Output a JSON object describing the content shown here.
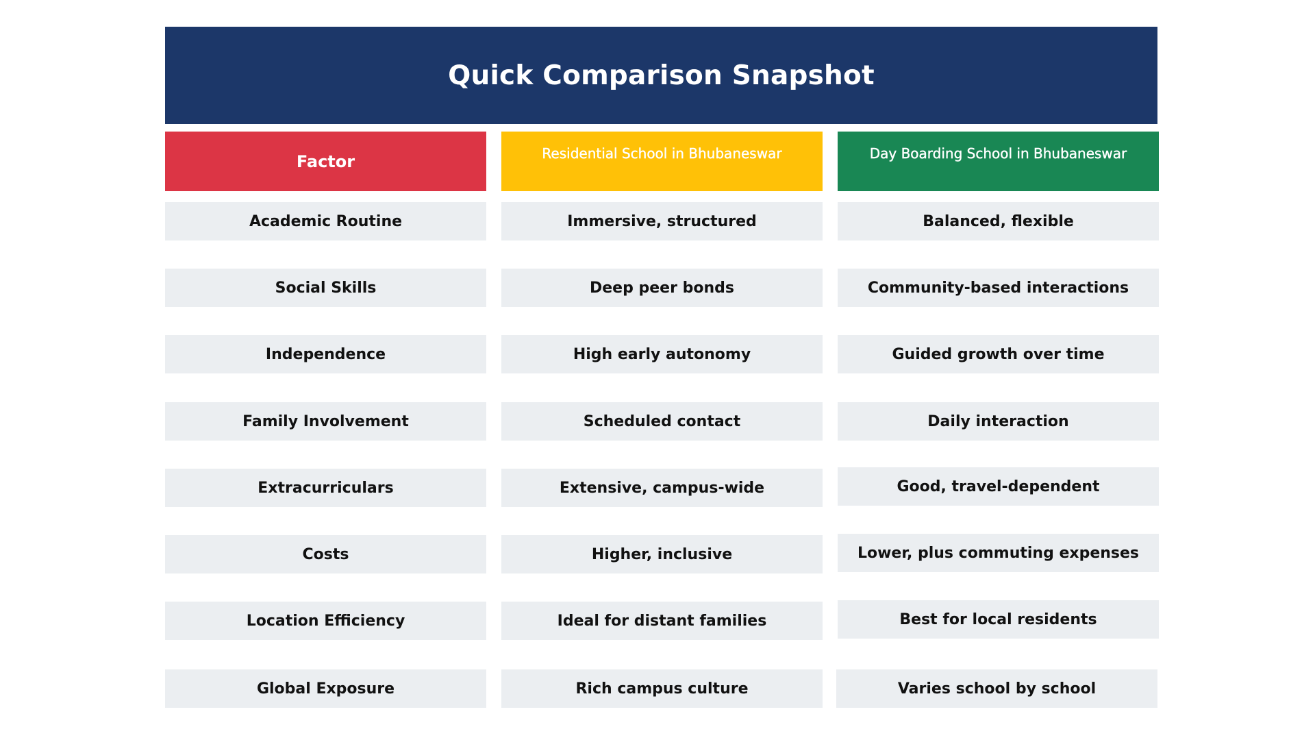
{
  "title": "Quick Comparison Snapshot",
  "headers": {
    "factor": "Factor",
    "residential": "Residential School in Bhubaneswar",
    "day_boarding": "Day Boarding School in Bhubaneswar"
  },
  "colors": {
    "title_bg": "#1c3769",
    "factor_bg": "#dc3545",
    "residential_bg": "#ffc107",
    "day_boarding_bg": "#198754",
    "cell_bg": "#ebeef1"
  },
  "rows": [
    {
      "factor": "Academic Routine",
      "residential": "Immersive, structured",
      "day_boarding": "Balanced, flexible"
    },
    {
      "factor": "Social Skills",
      "residential": "Deep peer bonds",
      "day_boarding": "Community-based interactions"
    },
    {
      "factor": "Independence",
      "residential": "High early autonomy",
      "day_boarding": "Guided growth over time"
    },
    {
      "factor": "Family Involvement",
      "residential": "Scheduled contact",
      "day_boarding": "Daily interaction"
    },
    {
      "factor": "Extracurriculars",
      "residential": "Extensive, campus-wide",
      "day_boarding": "Good, travel-dependent"
    },
    {
      "factor": "Costs",
      "residential": "Higher, inclusive",
      "day_boarding": "Lower, plus commuting expenses"
    },
    {
      "factor": "Location Efficiency",
      "residential": "Ideal for distant families",
      "day_boarding": "Best for local residents"
    },
    {
      "factor": "Global Exposure",
      "residential": "Rich campus culture",
      "day_boarding": "Varies school by school"
    }
  ]
}
